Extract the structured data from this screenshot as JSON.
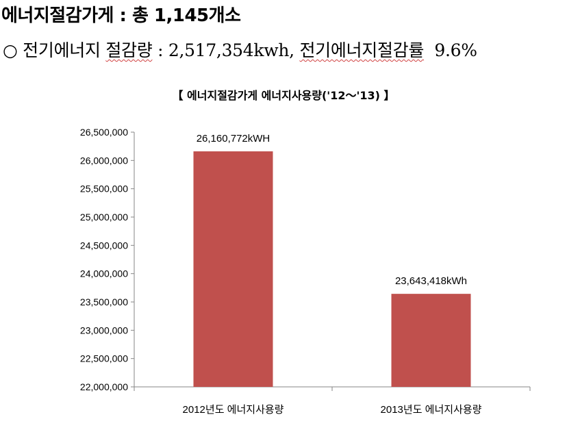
{
  "heading": "에너지절감가게 : 총 1,145개소",
  "subline": {
    "bullet": "○",
    "label1": "전기에너지 ",
    "label1_underlined": "절감량",
    "value1": " : 2,517,354kwh, ",
    "label2": "전기에너지절감률",
    "value2": "  9.6%"
  },
  "chart_data": {
    "type": "bar",
    "title": "【 에너지절감가게 에너지사용량('12～'13) 】",
    "categories": [
      "2012년도 에너지사용량",
      "2013년도 에너지사용량"
    ],
    "values": [
      26160772,
      23643418
    ],
    "data_labels": [
      "26,160,772kWH",
      "23,643,418kWh"
    ],
    "ylim": [
      22000000,
      26500000
    ],
    "ytick_step": 500000,
    "yticks": [
      "22,000,000",
      "22,500,000",
      "23,000,000",
      "23,500,000",
      "24,000,000",
      "24,500,000",
      "25,000,000",
      "25,500,000",
      "26,000,000",
      "26,500,000"
    ],
    "bar_color": "#c0504d",
    "grid": false,
    "legend": "none"
  }
}
